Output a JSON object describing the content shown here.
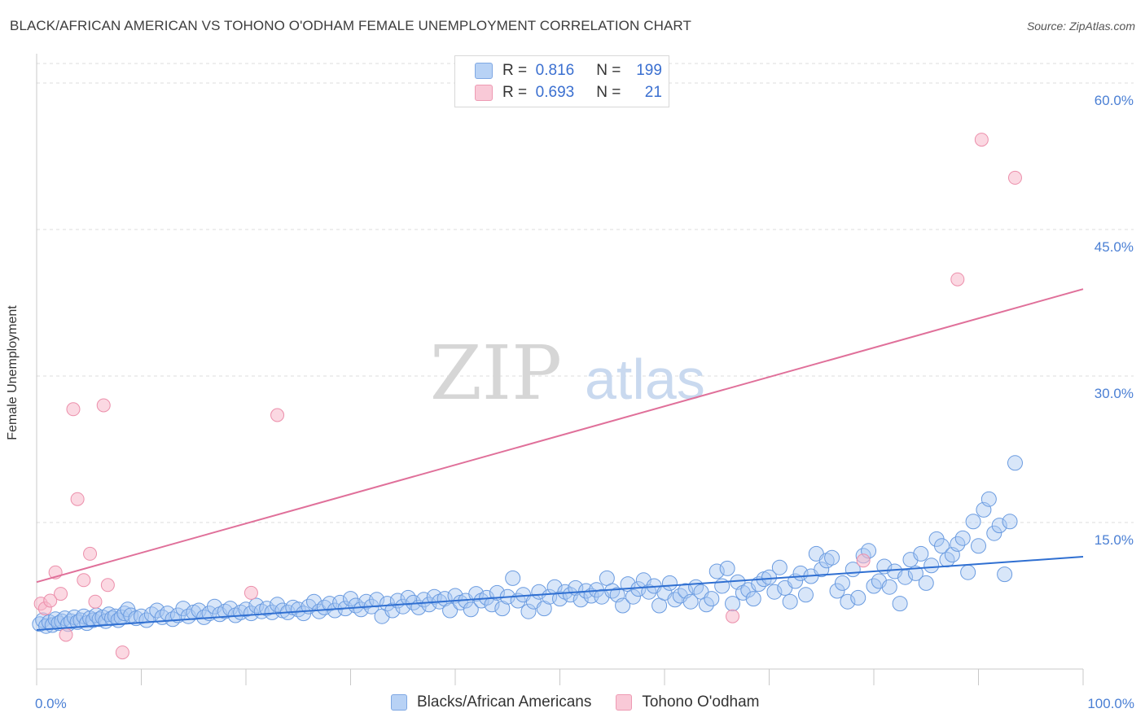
{
  "header": {
    "title": "BLACK/AFRICAN AMERICAN VS TOHONO O'ODHAM FEMALE UNEMPLOYMENT CORRELATION CHART",
    "source": "Source: ZipAtlas.com"
  },
  "watermark": {
    "zip": "ZIP",
    "atlas": "atlas"
  },
  "legend": {
    "rows": [
      {
        "r_label": "R =",
        "r_value": "0.816",
        "n_label": "N =",
        "n_value": "199",
        "color": "#a9c7f2"
      },
      {
        "r_label": "R =",
        "r_value": "0.693",
        "n_label": "N =",
        "n_value": "21",
        "color": "#f7b8cb"
      }
    ]
  },
  "bottom_legend": {
    "items": [
      {
        "label": "Blacks/African Americans",
        "color": "#a9c7f2"
      },
      {
        "label": "Tohono O'odham",
        "color": "#f7b8cb"
      }
    ]
  },
  "chart_data": {
    "type": "scatter",
    "title": "BLACK/AFRICAN AMERICAN VS TOHONO O'ODHAM FEMALE UNEMPLOYMENT CORRELATION CHART",
    "xlabel": "",
    "ylabel": "Female Unemployment",
    "xlim": [
      0,
      100
    ],
    "ylim": [
      0,
      63
    ],
    "x_tick_labels": [
      "0.0%",
      "100.0%"
    ],
    "y_ticks": [
      15,
      30,
      45,
      60
    ],
    "y_tick_labels": [
      "15.0%",
      "30.0%",
      "45.0%",
      "60.0%"
    ],
    "grid": "horizontal dashed",
    "series": [
      {
        "name": "Blacks/African Americans",
        "color": "#6a9be0",
        "fill": "#a9c7f2",
        "trend": {
          "x": [
            0,
            100
          ],
          "y": [
            4.0,
            11.5
          ]
        },
        "points": [
          [
            0.3,
            4.6
          ],
          [
            0.6,
            5.0
          ],
          [
            0.9,
            4.4
          ],
          [
            1.2,
            4.8
          ],
          [
            1.5,
            4.5
          ],
          [
            1.8,
            5.1
          ],
          [
            2.1,
            4.7
          ],
          [
            2.4,
            4.9
          ],
          [
            2.7,
            5.2
          ],
          [
            3.0,
            4.6
          ],
          [
            3.3,
            4.9
          ],
          [
            3.6,
            5.3
          ],
          [
            3.9,
            4.8
          ],
          [
            4.2,
            5.0
          ],
          [
            4.5,
            5.4
          ],
          [
            4.8,
            4.7
          ],
          [
            5.1,
            5.2
          ],
          [
            5.4,
            5.0
          ],
          [
            5.7,
            5.5
          ],
          [
            6.0,
            5.1
          ],
          [
            6.3,
            5.3
          ],
          [
            6.6,
            4.9
          ],
          [
            6.9,
            5.6
          ],
          [
            7.2,
            5.2
          ],
          [
            7.5,
            5.4
          ],
          [
            7.8,
            5.0
          ],
          [
            8.1,
            5.3
          ],
          [
            8.4,
            5.7
          ],
          [
            8.7,
            6.1
          ],
          [
            9.0,
            5.5
          ],
          [
            9.5,
            5.2
          ],
          [
            10.0,
            5.4
          ],
          [
            10.5,
            5.0
          ],
          [
            11.0,
            5.6
          ],
          [
            11.5,
            6.0
          ],
          [
            12.0,
            5.3
          ],
          [
            12.5,
            5.7
          ],
          [
            13.0,
            5.1
          ],
          [
            13.5,
            5.5
          ],
          [
            14.0,
            6.2
          ],
          [
            14.5,
            5.4
          ],
          [
            15.0,
            5.8
          ],
          [
            15.5,
            6.0
          ],
          [
            16.0,
            5.3
          ],
          [
            16.5,
            5.7
          ],
          [
            17.0,
            6.4
          ],
          [
            17.5,
            5.6
          ],
          [
            18.0,
            5.9
          ],
          [
            18.5,
            6.2
          ],
          [
            19.0,
            5.5
          ],
          [
            19.5,
            5.8
          ],
          [
            20.0,
            6.1
          ],
          [
            20.5,
            5.7
          ],
          [
            21.0,
            6.5
          ],
          [
            21.5,
            5.9
          ],
          [
            22.0,
            6.2
          ],
          [
            22.5,
            5.8
          ],
          [
            23.0,
            6.6
          ],
          [
            23.5,
            6.0
          ],
          [
            24.0,
            5.8
          ],
          [
            24.5,
            6.3
          ],
          [
            25.0,
            6.1
          ],
          [
            25.5,
            5.7
          ],
          [
            26.0,
            6.4
          ],
          [
            26.5,
            6.9
          ],
          [
            27.0,
            5.9
          ],
          [
            27.5,
            6.3
          ],
          [
            28.0,
            6.7
          ],
          [
            28.5,
            6.0
          ],
          [
            29.0,
            6.8
          ],
          [
            29.5,
            6.2
          ],
          [
            30.0,
            7.2
          ],
          [
            30.5,
            6.5
          ],
          [
            31.0,
            6.1
          ],
          [
            31.5,
            6.9
          ],
          [
            32.0,
            6.4
          ],
          [
            32.5,
            7.1
          ],
          [
            33.0,
            5.4
          ],
          [
            33.5,
            6.7
          ],
          [
            34.0,
            6.0
          ],
          [
            34.5,
            7.0
          ],
          [
            35.0,
            6.4
          ],
          [
            35.5,
            7.3
          ],
          [
            36.0,
            6.8
          ],
          [
            36.5,
            6.3
          ],
          [
            37.0,
            7.1
          ],
          [
            37.5,
            6.6
          ],
          [
            38.0,
            7.4
          ],
          [
            38.5,
            6.9
          ],
          [
            39.0,
            7.2
          ],
          [
            39.5,
            6.0
          ],
          [
            40.0,
            7.5
          ],
          [
            40.5,
            6.8
          ],
          [
            41.0,
            7.0
          ],
          [
            41.5,
            6.1
          ],
          [
            42.0,
            7.7
          ],
          [
            42.5,
            7.0
          ],
          [
            43.0,
            7.3
          ],
          [
            43.5,
            6.6
          ],
          [
            44.0,
            7.8
          ],
          [
            44.5,
            6.2
          ],
          [
            45.0,
            7.4
          ],
          [
            45.5,
            9.3
          ],
          [
            46.0,
            7.0
          ],
          [
            46.5,
            7.6
          ],
          [
            47.0,
            5.9
          ],
          [
            47.5,
            6.9
          ],
          [
            48.0,
            7.9
          ],
          [
            48.5,
            6.2
          ],
          [
            49.0,
            7.4
          ],
          [
            49.5,
            8.4
          ],
          [
            50.0,
            7.2
          ],
          [
            50.5,
            7.9
          ],
          [
            51.0,
            7.6
          ],
          [
            51.5,
            8.3
          ],
          [
            52.0,
            7.1
          ],
          [
            52.5,
            8.0
          ],
          [
            53.0,
            7.5
          ],
          [
            53.5,
            8.1
          ],
          [
            54.0,
            7.4
          ],
          [
            54.5,
            9.3
          ],
          [
            55.0,
            8.0
          ],
          [
            55.5,
            7.6
          ],
          [
            56.0,
            6.5
          ],
          [
            56.5,
            8.7
          ],
          [
            57.0,
            7.4
          ],
          [
            57.5,
            8.2
          ],
          [
            58.0,
            9.1
          ],
          [
            58.5,
            7.9
          ],
          [
            59.0,
            8.5
          ],
          [
            59.5,
            6.5
          ],
          [
            60.0,
            7.8
          ],
          [
            60.5,
            8.8
          ],
          [
            61.0,
            7.1
          ],
          [
            61.5,
            7.5
          ],
          [
            62.0,
            8.0
          ],
          [
            62.5,
            6.9
          ],
          [
            63.0,
            8.4
          ],
          [
            63.5,
            7.9
          ],
          [
            64.0,
            6.6
          ],
          [
            64.5,
            7.2
          ],
          [
            65.0,
            10.0
          ],
          [
            65.5,
            8.5
          ],
          [
            66.0,
            10.3
          ],
          [
            66.5,
            6.7
          ],
          [
            67.0,
            8.9
          ],
          [
            67.5,
            7.8
          ],
          [
            68.0,
            8.1
          ],
          [
            68.5,
            7.2
          ],
          [
            69.0,
            8.7
          ],
          [
            69.5,
            9.2
          ],
          [
            70.0,
            9.4
          ],
          [
            70.5,
            7.9
          ],
          [
            71.0,
            10.4
          ],
          [
            71.5,
            8.3
          ],
          [
            72.0,
            6.9
          ],
          [
            72.5,
            9.0
          ],
          [
            73.0,
            9.8
          ],
          [
            73.5,
            7.6
          ],
          [
            74.0,
            9.5
          ],
          [
            74.5,
            11.8
          ],
          [
            75.0,
            10.2
          ],
          [
            75.5,
            11.1
          ],
          [
            76.0,
            11.4
          ],
          [
            76.5,
            8.0
          ],
          [
            77.0,
            8.8
          ],
          [
            77.5,
            6.9
          ],
          [
            78.0,
            10.2
          ],
          [
            78.5,
            7.3
          ],
          [
            79.0,
            11.6
          ],
          [
            79.5,
            12.1
          ],
          [
            80.0,
            8.5
          ],
          [
            80.5,
            9.0
          ],
          [
            81.0,
            10.5
          ],
          [
            81.5,
            8.4
          ],
          [
            82.0,
            10.0
          ],
          [
            82.5,
            6.7
          ],
          [
            83.0,
            9.4
          ],
          [
            83.5,
            11.2
          ],
          [
            84.0,
            9.8
          ],
          [
            84.5,
            11.8
          ],
          [
            85.0,
            8.8
          ],
          [
            85.5,
            10.6
          ],
          [
            86.0,
            13.3
          ],
          [
            86.5,
            12.6
          ],
          [
            87.0,
            11.2
          ],
          [
            87.5,
            11.7
          ],
          [
            88.0,
            12.8
          ],
          [
            88.5,
            13.4
          ],
          [
            89.0,
            9.9
          ],
          [
            89.5,
            15.1
          ],
          [
            90.0,
            12.6
          ],
          [
            90.5,
            16.3
          ],
          [
            91.0,
            17.4
          ],
          [
            91.5,
            13.9
          ],
          [
            92.0,
            14.7
          ],
          [
            92.5,
            9.7
          ],
          [
            93.0,
            15.1
          ],
          [
            93.5,
            21.1
          ]
        ]
      },
      {
        "name": "Tohono O'odham",
        "color": "#ec8fab",
        "fill": "#f7b8cb",
        "trend": {
          "x": [
            0,
            100
          ],
          "y": [
            8.9,
            38.9
          ]
        },
        "points": [
          [
            0.4,
            6.7
          ],
          [
            0.8,
            6.2
          ],
          [
            1.3,
            7.0
          ],
          [
            1.8,
            9.9
          ],
          [
            2.3,
            7.7
          ],
          [
            2.8,
            3.5
          ],
          [
            3.5,
            26.6
          ],
          [
            3.9,
            17.4
          ],
          [
            4.5,
            9.1
          ],
          [
            5.1,
            11.8
          ],
          [
            5.6,
            6.9
          ],
          [
            6.4,
            27.0
          ],
          [
            6.8,
            8.6
          ],
          [
            8.2,
            1.7
          ],
          [
            20.5,
            7.8
          ],
          [
            23.0,
            26.0
          ],
          [
            66.5,
            5.4
          ],
          [
            79.0,
            11.1
          ],
          [
            88.0,
            39.9
          ],
          [
            90.3,
            54.2
          ],
          [
            93.5,
            50.3
          ]
        ]
      }
    ]
  }
}
